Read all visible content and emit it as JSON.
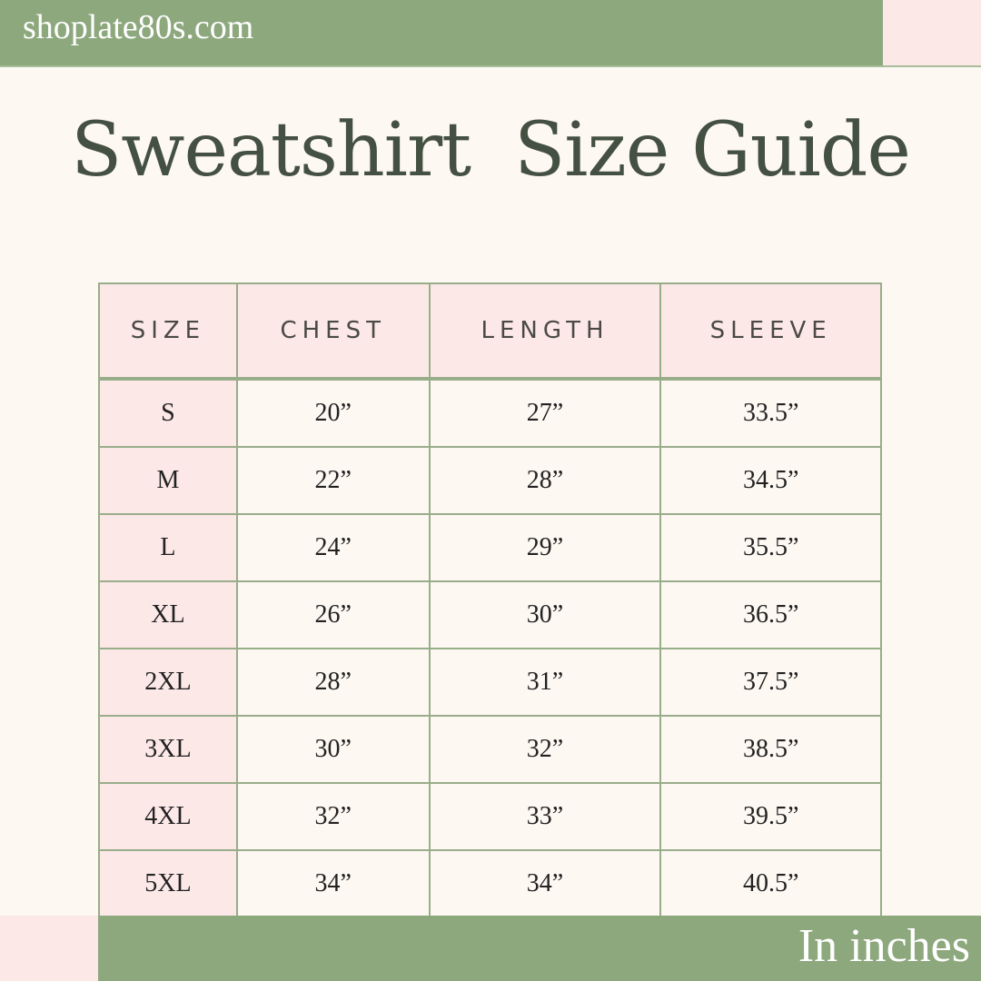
{
  "header": {
    "site": "shoplate80s.com"
  },
  "title": {
    "part1": "Sweatshirt",
    "part2": "Size Guide"
  },
  "table": {
    "columns": [
      "SIZE",
      "CHEST",
      "LENGTH",
      "SLEEVE"
    ],
    "rows": [
      [
        "S",
        "20”",
        "27”",
        "33.5”"
      ],
      [
        "M",
        "22”",
        "28”",
        "34.5”"
      ],
      [
        "L",
        "24”",
        "29”",
        "35.5”"
      ],
      [
        "XL",
        "26”",
        "30”",
        "36.5”"
      ],
      [
        "2XL",
        "28”",
        "31”",
        "37.5”"
      ],
      [
        "3XL",
        "30”",
        "32”",
        "38.5”"
      ],
      [
        "4XL",
        "32”",
        "33”",
        "39.5”"
      ],
      [
        "5XL",
        "34”",
        "34”",
        "40.5”"
      ]
    ]
  },
  "footer": {
    "note": "In inches"
  },
  "colors": {
    "green": "#8da87d",
    "pink": "#fde8e8",
    "background": "#fdf8f2",
    "title": "#445041"
  }
}
